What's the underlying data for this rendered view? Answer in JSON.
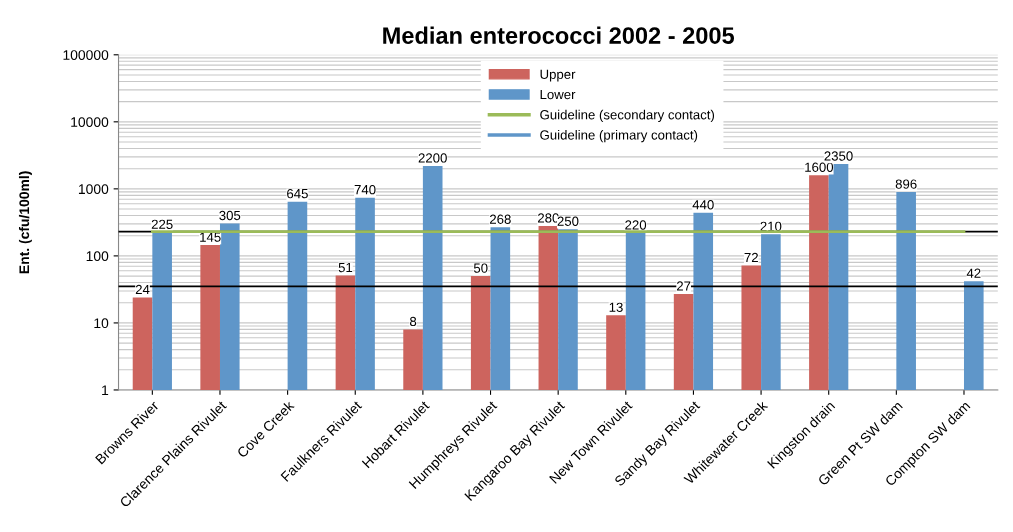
{
  "chart_data": {
    "type": "bar",
    "title": "Median enterococci 2002 - 2005",
    "ylabel": "Ent. (cfu/100ml)",
    "categories": [
      "Browns River",
      "Clarence Plains Rivulet",
      "Cove Creek",
      "Faulkners Rivulet",
      "Hobart Rivulet",
      "Humphreys Rivulet",
      "Kangaroo Bay Rivulet",
      "New Town Rivulet",
      "Sandy Bay Rivulet",
      "Whitewater Creek",
      "Kingston drain",
      "Green Pt SW dam",
      "Compton SW dam"
    ],
    "series": [
      {
        "name": "Upper",
        "color": "#cd645e",
        "values": [
          24,
          145,
          null,
          51,
          8,
          50,
          280,
          13,
          27,
          72,
          1600,
          null,
          null
        ],
        "value_labels": [
          "24",
          "145",
          null,
          "51",
          "8",
          "50",
          "280",
          "13",
          "27",
          "72",
          "1600",
          null,
          null
        ]
      },
      {
        "name": "Lower",
        "color": "#5f96c9",
        "values": [
          225,
          305,
          645,
          740,
          2200,
          268,
          250,
          220,
          440,
          210,
          2350,
          896,
          42
        ],
        "value_labels": [
          "225",
          "305",
          "645",
          "740",
          "2200",
          "268",
          "250",
          "220",
          "440",
          "210",
          "2350",
          "896",
          "42"
        ]
      },
      {
        "name": "Guideline (secondary contact)",
        "type": "line",
        "color": "#9bbb59",
        "values": [
          230,
          230,
          230,
          230,
          230,
          230,
          230,
          230,
          230,
          230,
          230,
          230,
          230
        ]
      },
      {
        "name": "Guideline (primary contact)",
        "type": "line",
        "color": "#5f96c9",
        "values": [
          null,
          null,
          null,
          null,
          null,
          null,
          null,
          null,
          null,
          null,
          null,
          null,
          null
        ]
      }
    ],
    "ref_lines": [
      {
        "axis": "y",
        "value": 230,
        "color": "#000000"
      },
      {
        "axis": "y",
        "value": 35,
        "color": "#000000"
      }
    ],
    "log": "y",
    "ylim": [
      1,
      100000
    ],
    "yticks": [
      1,
      10,
      100,
      1000,
      10000,
      100000
    ],
    "grid": "y",
    "legend": "top"
  }
}
